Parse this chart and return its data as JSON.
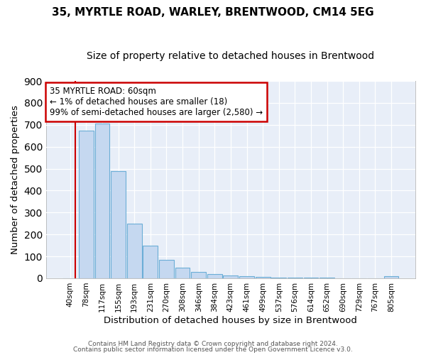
{
  "title1": "35, MYRTLE ROAD, WARLEY, BRENTWOOD, CM14 5EG",
  "title2": "Size of property relative to detached houses in Brentwood",
  "xlabel": "Distribution of detached houses by size in Brentwood",
  "ylabel": "Number of detached properties",
  "bar_labels": [
    "40sqm",
    "78sqm",
    "117sqm",
    "155sqm",
    "193sqm",
    "231sqm",
    "270sqm",
    "308sqm",
    "346sqm",
    "384sqm",
    "423sqm",
    "461sqm",
    "499sqm",
    "537sqm",
    "576sqm",
    "614sqm",
    "652sqm",
    "690sqm",
    "729sqm",
    "767sqm",
    "805sqm"
  ],
  "bar_values": [
    0,
    675,
    705,
    490,
    250,
    150,
    85,
    50,
    28,
    20,
    12,
    8,
    5,
    4,
    3,
    2,
    2,
    1,
    1,
    1,
    8
  ],
  "bar_color": "#c5d8f0",
  "bar_edge_color": "#6baed6",
  "annotation_text": "35 MYRTLE ROAD: 60sqm\n← 1% of detached houses are smaller (18)\n99% of semi-detached houses are larger (2,580) →",
  "annotation_box_color": "#ffffff",
  "annotation_box_edge": "#cc0000",
  "red_line_color": "#cc0000",
  "ylim": [
    0,
    900
  ],
  "yticks": [
    0,
    100,
    200,
    300,
    400,
    500,
    600,
    700,
    800,
    900
  ],
  "footer1": "Contains HM Land Registry data © Crown copyright and database right 2024.",
  "footer2": "Contains public sector information licensed under the Open Government Licence v3.0.",
  "bg_color": "#ffffff",
  "plot_bg_color": "#e8eef8",
  "title1_fontsize": 11,
  "title2_fontsize": 10
}
